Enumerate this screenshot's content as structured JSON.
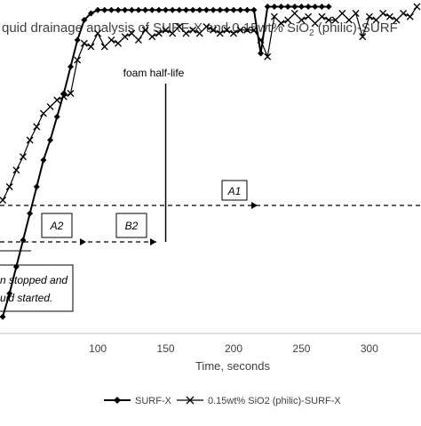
{
  "chart_data": {
    "type": "line",
    "title": "quid drainage analysis of SURF-X and 0.15wt% SiO",
    "title_sub": "2",
    "title_tail": " (philic)-SURF",
    "xlabel": "Time, seconds",
    "ylabel": "",
    "xlim": [
      28,
      338
    ],
    "ylim": [
      0,
      100
    ],
    "x_ticks": [
      100,
      150,
      200,
      250,
      300
    ],
    "grid": false,
    "legend_position": "bottom",
    "series": [
      {
        "name": "SURF-X",
        "color": "#000000",
        "marker": "diamond",
        "x": [
          30,
          35,
          40,
          45,
          50,
          55,
          60,
          65,
          70,
          75,
          80,
          85,
          90,
          95,
          100,
          105,
          110,
          115,
          120,
          125,
          130,
          135,
          140,
          145,
          150,
          155,
          160,
          165,
          170,
          175,
          180,
          185,
          190,
          195,
          200,
          205,
          210,
          215,
          220,
          225,
          230,
          235,
          240,
          245,
          250,
          255,
          260,
          265,
          270
        ],
        "y": [
          5,
          12,
          20,
          28,
          36,
          44,
          52,
          58,
          65,
          72,
          80,
          88,
          94,
          96,
          97,
          97,
          97,
          97,
          97,
          97,
          97,
          97,
          97,
          97,
          97,
          97,
          97,
          97,
          97,
          97,
          97,
          97,
          97,
          97,
          97,
          97,
          97,
          97,
          84,
          98,
          98,
          98,
          98,
          98,
          98,
          98,
          98,
          98,
          98
        ]
      },
      {
        "name": "0.15wt% SiO2 (philic)-SURF-X",
        "color": "#000000",
        "marker": "x",
        "x": [
          30,
          35,
          40,
          45,
          50,
          55,
          60,
          65,
          70,
          75,
          80,
          85,
          90,
          95,
          100,
          105,
          110,
          115,
          120,
          125,
          130,
          135,
          140,
          145,
          150,
          155,
          160,
          165,
          170,
          175,
          180,
          185,
          190,
          195,
          200,
          205,
          210,
          215,
          220,
          225,
          230,
          235,
          240,
          245,
          250,
          255,
          260,
          265,
          270,
          275,
          280,
          285,
          290,
          295,
          300,
          305,
          310,
          315,
          320,
          325,
          330,
          335
        ],
        "y": [
          40,
          44,
          49,
          53,
          58,
          62,
          66,
          68,
          70,
          71,
          72,
          82,
          87,
          86,
          90,
          86,
          88,
          87,
          89,
          90,
          88,
          91,
          89,
          90,
          91,
          90,
          92,
          90,
          91,
          90,
          92,
          91,
          90,
          91,
          90,
          91,
          91,
          91,
          88,
          83,
          95,
          93,
          94,
          96,
          94,
          95,
          93,
          95,
          94,
          94,
          96,
          94,
          96,
          89,
          95,
          94,
          96,
          95,
          94,
          96,
          95,
          98
        ]
      }
    ],
    "annotations": {
      "half_life_label": "foam half-life",
      "half_life_x": 150,
      "a1_label": "A1",
      "a2_label": "A2",
      "b2_label": "B2",
      "note_line1": "n stopped and",
      "note_line2": "uid started."
    }
  }
}
